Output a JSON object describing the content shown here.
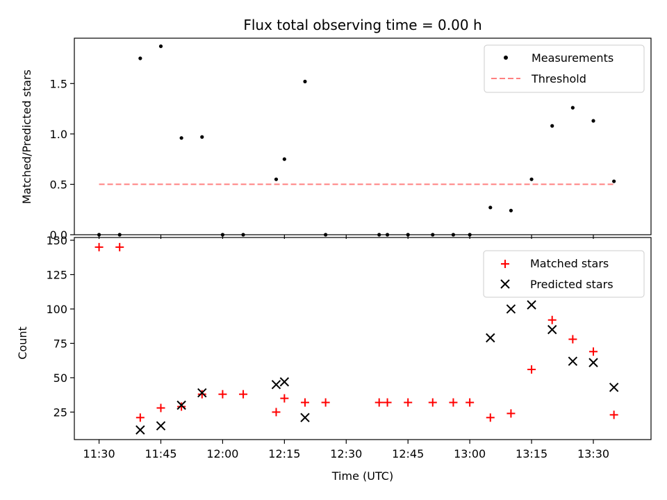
{
  "chart_data": [
    {
      "type": "scatter",
      "title": "Flux total observing time = 0.00 h",
      "ylabel": "Matched/Predicted stars",
      "ylim": [
        0,
        1.95
      ],
      "yticks": [
        0.0,
        0.5,
        1.0,
        1.5
      ],
      "ytick_labels": [
        "0.0",
        "0.5",
        "1.0",
        "1.5"
      ],
      "grid": false,
      "legend_position": "top-right",
      "series": [
        {
          "name": "Measurements",
          "kind": "scatter",
          "marker": "dot",
          "color": "#000000",
          "points": [
            {
              "t": "11:30",
              "y": 0.0
            },
            {
              "t": "11:35",
              "y": 0.0
            },
            {
              "t": "11:40",
              "y": 1.75
            },
            {
              "t": "11:45",
              "y": 1.87
            },
            {
              "t": "11:50",
              "y": 0.96
            },
            {
              "t": "11:55",
              "y": 0.97
            },
            {
              "t": "12:00",
              "y": 0.0
            },
            {
              "t": "12:05",
              "y": 0.0
            },
            {
              "t": "12:13",
              "y": 0.55
            },
            {
              "t": "12:15",
              "y": 0.75
            },
            {
              "t": "12:20",
              "y": 1.52
            },
            {
              "t": "12:25",
              "y": 0.0
            },
            {
              "t": "12:38",
              "y": 0.0
            },
            {
              "t": "12:40",
              "y": 0.0
            },
            {
              "t": "12:45",
              "y": 0.0
            },
            {
              "t": "12:51",
              "y": 0.0
            },
            {
              "t": "12:56",
              "y": 0.0
            },
            {
              "t": "13:00",
              "y": 0.0
            },
            {
              "t": "13:05",
              "y": 0.27
            },
            {
              "t": "13:10",
              "y": 0.24
            },
            {
              "t": "13:15",
              "y": 0.55
            },
            {
              "t": "13:20",
              "y": 1.08
            },
            {
              "t": "13:25",
              "y": 1.26
            },
            {
              "t": "13:30",
              "y": 1.13
            },
            {
              "t": "13:35",
              "y": 0.53
            }
          ]
        },
        {
          "name": "Threshold",
          "kind": "line",
          "dash": "dashed",
          "color": "#ff8080",
          "points": [
            {
              "t": "11:30",
              "y": 0.5
            },
            {
              "t": "13:35",
              "y": 0.5
            }
          ]
        }
      ]
    },
    {
      "type": "scatter",
      "xlabel": "Time (UTC)",
      "ylabel": "Count",
      "ylim": [
        5,
        152
      ],
      "yticks": [
        25,
        50,
        75,
        100,
        125,
        150
      ],
      "ytick_labels": [
        "25",
        "50",
        "75",
        "100",
        "125",
        "150"
      ],
      "xticks": [
        "11:30",
        "11:45",
        "12:00",
        "12:15",
        "12:30",
        "12:45",
        "13:00",
        "13:15",
        "13:30"
      ],
      "xtick_labels": [
        "11:30",
        "11:45",
        "12:00",
        "12:15",
        "12:30",
        "12:45",
        "13:00",
        "13:15",
        "13:30"
      ],
      "xlim": [
        "11:24",
        "13:44"
      ],
      "grid": false,
      "legend_position": "top-right",
      "series": [
        {
          "name": "Matched stars",
          "marker": "plus",
          "color": "#ff0000",
          "points": [
            {
              "t": "11:30",
              "y": 145
            },
            {
              "t": "11:35",
              "y": 145
            },
            {
              "t": "11:40",
              "y": 21
            },
            {
              "t": "11:45",
              "y": 28
            },
            {
              "t": "11:50",
              "y": 29
            },
            {
              "t": "11:55",
              "y": 38
            },
            {
              "t": "12:00",
              "y": 38
            },
            {
              "t": "12:05",
              "y": 38
            },
            {
              "t": "12:13",
              "y": 25
            },
            {
              "t": "12:15",
              "y": 35
            },
            {
              "t": "12:20",
              "y": 32
            },
            {
              "t": "12:25",
              "y": 32
            },
            {
              "t": "12:38",
              "y": 32
            },
            {
              "t": "12:40",
              "y": 32
            },
            {
              "t": "12:45",
              "y": 32
            },
            {
              "t": "12:51",
              "y": 32
            },
            {
              "t": "12:56",
              "y": 32
            },
            {
              "t": "13:00",
              "y": 32
            },
            {
              "t": "13:05",
              "y": 21
            },
            {
              "t": "13:10",
              "y": 24
            },
            {
              "t": "13:15",
              "y": 56
            },
            {
              "t": "13:20",
              "y": 92
            },
            {
              "t": "13:25",
              "y": 78
            },
            {
              "t": "13:30",
              "y": 69
            },
            {
              "t": "13:35",
              "y": 23
            }
          ]
        },
        {
          "name": "Predicted stars",
          "marker": "x",
          "color": "#000000",
          "points": [
            {
              "t": "11:40",
              "y": 12
            },
            {
              "t": "11:45",
              "y": 15
            },
            {
              "t": "11:50",
              "y": 30
            },
            {
              "t": "11:55",
              "y": 39
            },
            {
              "t": "12:13",
              "y": 45
            },
            {
              "t": "12:15",
              "y": 47
            },
            {
              "t": "12:20",
              "y": 21
            },
            {
              "t": "13:05",
              "y": 79
            },
            {
              "t": "13:10",
              "y": 100
            },
            {
              "t": "13:15",
              "y": 103
            },
            {
              "t": "13:20",
              "y": 85
            },
            {
              "t": "13:25",
              "y": 62
            },
            {
              "t": "13:30",
              "y": 61
            },
            {
              "t": "13:35",
              "y": 43
            }
          ]
        }
      ]
    }
  ]
}
